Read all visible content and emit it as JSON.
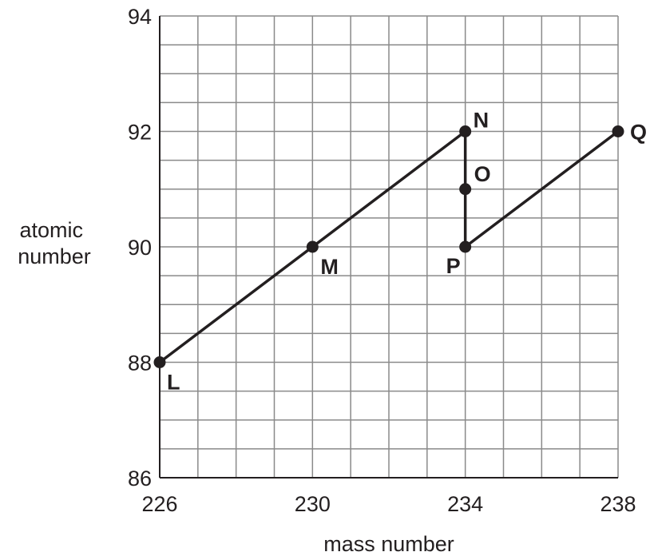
{
  "chart_data": {
    "type": "line",
    "xlabel": "mass number",
    "ylabel_lines": [
      "atomic",
      "number"
    ],
    "xlim": [
      226,
      238
    ],
    "ylim": [
      86,
      94
    ],
    "x_grid_step": 1,
    "y_grid_step": 0.5,
    "x_ticks": [
      226,
      230,
      234,
      238
    ],
    "y_ticks": [
      86,
      88,
      90,
      92,
      94
    ],
    "grid": true,
    "points": [
      {
        "label": "L",
        "x": 226,
        "y": 88
      },
      {
        "label": "M",
        "x": 230,
        "y": 90
      },
      {
        "label": "N",
        "x": 234,
        "y": 92
      },
      {
        "label": "O",
        "x": 234,
        "y": 91
      },
      {
        "label": "P",
        "x": 234,
        "y": 90
      },
      {
        "label": "Q",
        "x": 238,
        "y": 92
      }
    ],
    "segments": [
      [
        "L",
        "N"
      ],
      [
        "N",
        "P"
      ],
      [
        "P",
        "Q"
      ]
    ]
  }
}
